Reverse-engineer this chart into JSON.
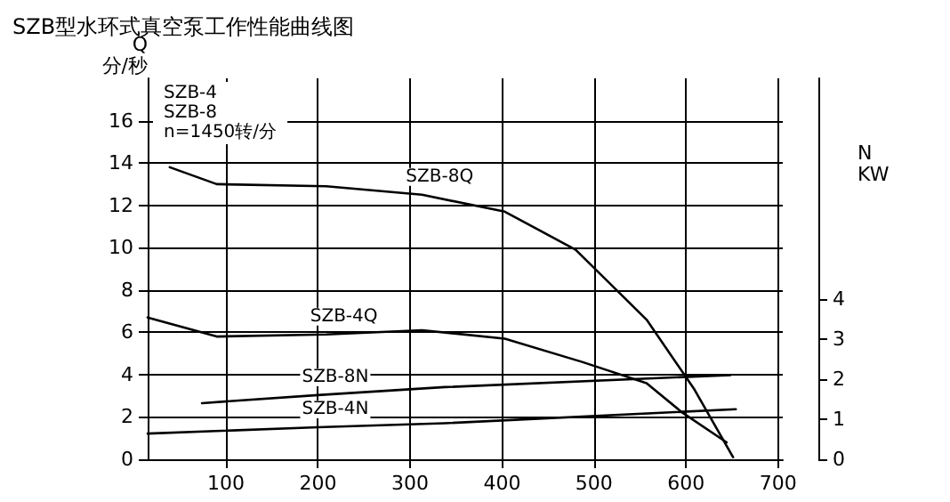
{
  "chart_data": {
    "type": "line",
    "title": "SZB型水环式真空泵工作性能曲线图",
    "ylabel": "Q\n分/秒",
    "y2label": "N\nKW",
    "annotations": [
      "SZB-4\nSZB-8\nn=1450转/分"
    ],
    "xlim": [
      15,
      705
    ],
    "xticks": [
      100,
      200,
      300,
      400,
      500,
      600,
      700
    ],
    "ylim": [
      0,
      18
    ],
    "yticks": [
      0,
      2,
      4,
      6,
      8,
      10,
      12,
      14,
      16
    ],
    "y2lim": [
      0,
      9.5
    ],
    "y2ticks": [
      0,
      1,
      2,
      3,
      4
    ],
    "grid": true,
    "legend": false,
    "marker": "none",
    "line_style": "solid",
    "series": [
      {
        "name": "SZB-8Q",
        "color": "#000000",
        "x": [
          39,
          90,
          209,
          313,
          403,
          480,
          557,
          609,
          651
        ],
        "values": [
          13.8,
          13.0,
          12.9,
          12.5,
          11.7,
          9.9,
          6.6,
          3.3,
          0.1
        ]
      },
      {
        "name": "SZB-4Q",
        "color": "#000000",
        "x": [
          15,
          90,
          209,
          313,
          403,
          487,
          557,
          596,
          644
        ],
        "values": [
          6.7,
          5.8,
          5.9,
          6.1,
          5.7,
          4.6,
          3.6,
          2.2,
          0.8
        ]
      },
      {
        "name": "SZB-8N",
        "color": "#000000",
        "axis": "y2",
        "x": [
          74,
          200,
          338,
          648
        ],
        "values": [
          1.4,
          1.6,
          1.8,
          2.1
        ]
      },
      {
        "name": "SZB-4N",
        "color": "#000000",
        "axis": "y2",
        "x": [
          15,
          200,
          338,
          654
        ],
        "values": [
          0.64,
          0.8,
          0.9,
          1.25
        ]
      }
    ]
  }
}
